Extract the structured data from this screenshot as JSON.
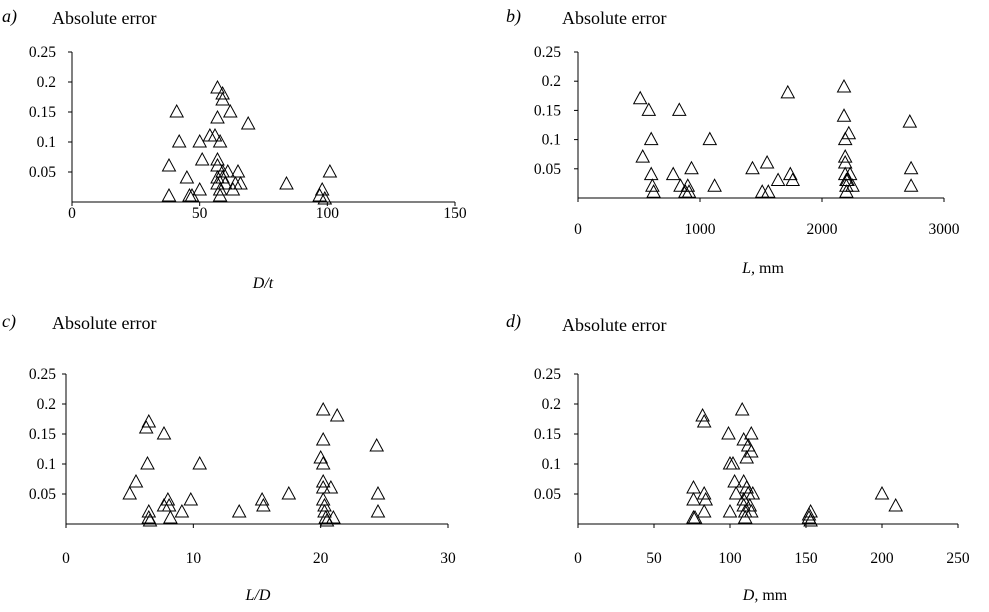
{
  "chart_data": [
    {
      "type": "scatter",
      "panel_label": "a)",
      "title": "Absolute error",
      "xlabel_main": "D/t",
      "xlabel_unit": "",
      "xlim": [
        0,
        150
      ],
      "ylim": [
        0,
        0.25
      ],
      "xticks": [
        "0",
        "50",
        "100",
        "150"
      ],
      "yticks": [
        "0.05",
        "0.1",
        "0.15",
        "0.2",
        "0.25"
      ],
      "marker": "open-triangle",
      "points": [
        [
          38,
          0.06
        ],
        [
          38,
          0.01
        ],
        [
          41,
          0.15
        ],
        [
          42,
          0.1
        ],
        [
          45,
          0.04
        ],
        [
          46,
          0.01
        ],
        [
          47,
          0.01
        ],
        [
          50,
          0.1
        ],
        [
          50,
          0.02
        ],
        [
          51,
          0.07
        ],
        [
          54,
          0.11
        ],
        [
          56,
          0.11
        ],
        [
          57,
          0.19
        ],
        [
          57,
          0.14
        ],
        [
          57,
          0.07
        ],
        [
          57,
          0.06
        ],
        [
          57,
          0.04
        ],
        [
          57,
          0.03
        ],
        [
          58,
          0.1
        ],
        [
          58,
          0.02
        ],
        [
          58,
          0.01
        ],
        [
          59,
          0.18
        ],
        [
          59,
          0.17
        ],
        [
          59,
          0.05
        ],
        [
          59,
          0.04
        ],
        [
          60,
          0.03
        ],
        [
          61,
          0.05
        ],
        [
          62,
          0.15
        ],
        [
          63,
          0.02
        ],
        [
          64,
          0.03
        ],
        [
          65,
          0.05
        ],
        [
          66,
          0.03
        ],
        [
          69,
          0.13
        ],
        [
          84,
          0.03
        ],
        [
          97,
          0.01
        ],
        [
          98,
          0.02
        ],
        [
          99,
          0.005
        ],
        [
          101,
          0.05
        ]
      ]
    },
    {
      "type": "scatter",
      "panel_label": "b)",
      "title": "Absolute error",
      "xlabel_main": "L,",
      "xlabel_unit": " mm",
      "xlim": [
        0,
        3000
      ],
      "ylim": [
        0,
        0.25
      ],
      "xticks": [
        "0",
        "1000",
        "2000",
        "3000"
      ],
      "yticks": [
        "0.05",
        "0.1",
        "0.15",
        "0.2",
        "0.25"
      ],
      "marker": "open-triangle",
      "points": [
        [
          510,
          0.17
        ],
        [
          530,
          0.07
        ],
        [
          580,
          0.15
        ],
        [
          600,
          0.1
        ],
        [
          600,
          0.04
        ],
        [
          610,
          0.02
        ],
        [
          620,
          0.01
        ],
        [
          780,
          0.04
        ],
        [
          830,
          0.15
        ],
        [
          840,
          0.02
        ],
        [
          880,
          0.01
        ],
        [
          900,
          0.02
        ],
        [
          910,
          0.01
        ],
        [
          930,
          0.05
        ],
        [
          1080,
          0.1
        ],
        [
          1120,
          0.02
        ],
        [
          1430,
          0.05
        ],
        [
          1510,
          0.01
        ],
        [
          1550,
          0.06
        ],
        [
          1560,
          0.01
        ],
        [
          1640,
          0.03
        ],
        [
          1720,
          0.18
        ],
        [
          1740,
          0.04
        ],
        [
          1760,
          0.03
        ],
        [
          2180,
          0.19
        ],
        [
          2180,
          0.14
        ],
        [
          2190,
          0.1
        ],
        [
          2190,
          0.07
        ],
        [
          2190,
          0.06
        ],
        [
          2190,
          0.04
        ],
        [
          2200,
          0.03
        ],
        [
          2200,
          0.02
        ],
        [
          2200,
          0.01
        ],
        [
          2210,
          0.03
        ],
        [
          2220,
          0.11
        ],
        [
          2230,
          0.04
        ],
        [
          2250,
          0.02
        ],
        [
          2720,
          0.13
        ],
        [
          2730,
          0.05
        ],
        [
          2730,
          0.02
        ]
      ]
    },
    {
      "type": "scatter",
      "panel_label": "c)",
      "title": "Absolute error",
      "xlabel_main": "L/D",
      "xlabel_unit": "",
      "xlim": [
        0,
        30
      ],
      "ylim": [
        0,
        0.25
      ],
      "xticks": [
        "0",
        "10",
        "20",
        "30"
      ],
      "yticks": [
        "0.05",
        "0.1",
        "0.15",
        "0.2",
        "0.25"
      ],
      "marker": "open-triangle",
      "points": [
        [
          5,
          0.05
        ],
        [
          5.5,
          0.07
        ],
        [
          6.3,
          0.16
        ],
        [
          6.4,
          0.1
        ],
        [
          6.5,
          0.17
        ],
        [
          6.5,
          0.02
        ],
        [
          6.5,
          0.01
        ],
        [
          6.6,
          0.005
        ],
        [
          7.7,
          0.15
        ],
        [
          7.7,
          0.03
        ],
        [
          8,
          0.04
        ],
        [
          8.1,
          0.03
        ],
        [
          8.2,
          0.01
        ],
        [
          9.1,
          0.02
        ],
        [
          9.8,
          0.04
        ],
        [
          10.5,
          0.1
        ],
        [
          13.6,
          0.02
        ],
        [
          15.4,
          0.04
        ],
        [
          15.5,
          0.03
        ],
        [
          17.5,
          0.05
        ],
        [
          20,
          0.11
        ],
        [
          20.2,
          0.19
        ],
        [
          20.2,
          0.14
        ],
        [
          20.2,
          0.1
        ],
        [
          20.2,
          0.07
        ],
        [
          20.2,
          0.06
        ],
        [
          20.2,
          0.04
        ],
        [
          20.3,
          0.03
        ],
        [
          20.3,
          0.02
        ],
        [
          20.4,
          0.01
        ],
        [
          20.5,
          0.005
        ],
        [
          20.8,
          0.06
        ],
        [
          21,
          0.01
        ],
        [
          21.3,
          0.18
        ],
        [
          24.4,
          0.13
        ],
        [
          24.5,
          0.05
        ],
        [
          24.5,
          0.02
        ]
      ]
    },
    {
      "type": "scatter",
      "panel_label": "d)",
      "title": "Absolute error",
      "xlabel_main": "D,",
      "xlabel_unit": " mm",
      "xlim": [
        0,
        250
      ],
      "ylim": [
        0,
        0.25
      ],
      "xticks": [
        "0",
        "50",
        "100",
        "150",
        "200",
        "250"
      ],
      "yticks": [
        "0.05",
        "0.1",
        "0.15",
        "0.2",
        "0.25"
      ],
      "marker": "open-triangle",
      "points": [
        [
          76,
          0.06
        ],
        [
          76,
          0.04
        ],
        [
          76,
          0.01
        ],
        [
          77,
          0.01
        ],
        [
          82,
          0.18
        ],
        [
          83,
          0.17
        ],
        [
          83,
          0.05
        ],
        [
          83,
          0.02
        ],
        [
          84,
          0.04
        ],
        [
          99,
          0.15
        ],
        [
          100,
          0.1
        ],
        [
          100,
          0.02
        ],
        [
          102,
          0.1
        ],
        [
          103,
          0.07
        ],
        [
          104,
          0.05
        ],
        [
          108,
          0.19
        ],
        [
          109,
          0.14
        ],
        [
          109,
          0.07
        ],
        [
          109,
          0.04
        ],
        [
          109,
          0.03
        ],
        [
          110,
          0.01
        ],
        [
          110,
          0.02
        ],
        [
          111,
          0.06
        ],
        [
          111,
          0.11
        ],
        [
          112,
          0.13
        ],
        [
          112,
          0.05
        ],
        [
          113,
          0.03
        ],
        [
          114,
          0.15
        ],
        [
          114,
          0.12
        ],
        [
          114,
          0.02
        ],
        [
          115,
          0.05
        ],
        [
          152,
          0.015
        ],
        [
          152,
          0.01
        ],
        [
          153,
          0.005
        ],
        [
          153,
          0.02
        ],
        [
          200,
          0.05
        ],
        [
          209,
          0.03
        ]
      ]
    }
  ]
}
